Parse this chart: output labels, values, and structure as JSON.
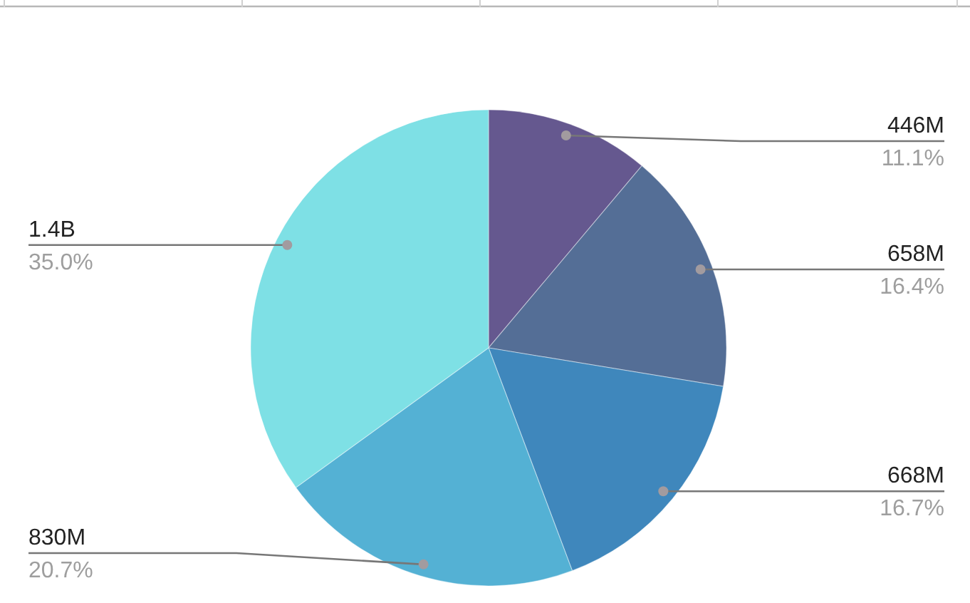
{
  "chart_data": {
    "type": "pie",
    "categories": [
      null,
      null,
      null,
      null,
      null
    ],
    "values": [
      446000000,
      658000000,
      668000000,
      830000000,
      1400000000
    ],
    "colors": [
      "#65588f",
      "#546e96",
      "#3f87bc",
      "#54b1d4",
      "#7ee0e5"
    ],
    "value_labels": [
      "446M",
      "658M",
      "668M",
      "830M",
      "1.4B"
    ],
    "annotations": [
      "11.1%",
      "16.4%",
      "16.7%",
      "20.7%",
      "35.0%"
    ]
  }
}
